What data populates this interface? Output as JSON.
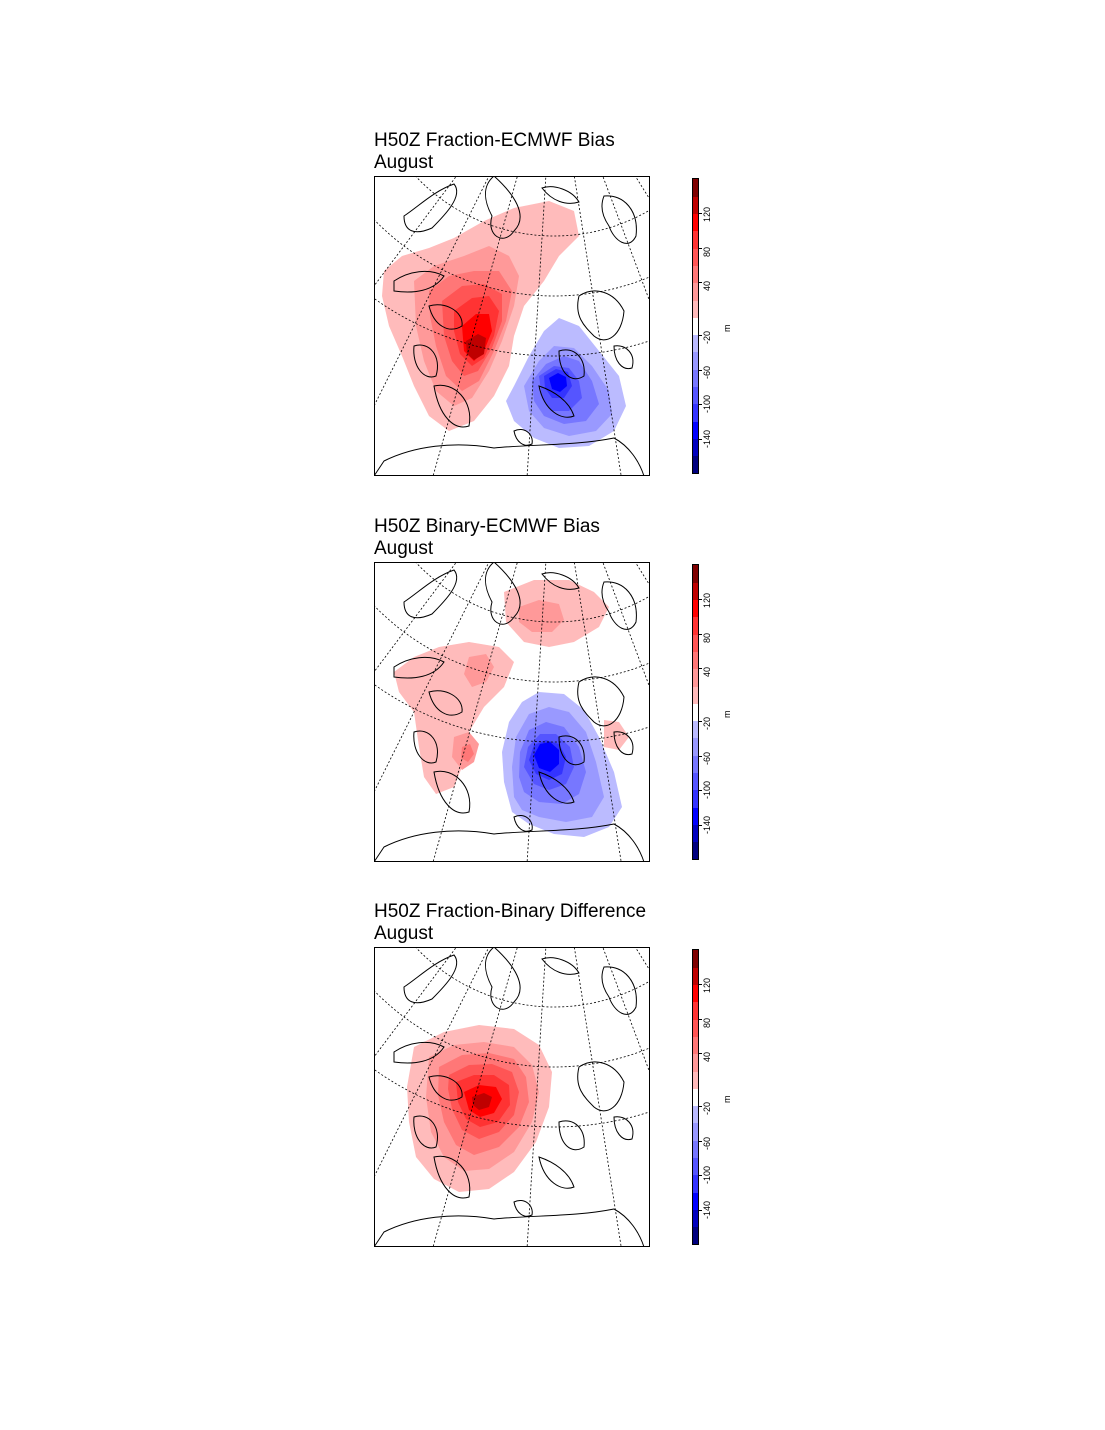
{
  "panels": [
    {
      "title_line1": "H50Z Fraction-ECMWF Bias",
      "title_line2": "August",
      "field_key": "bias_fraction"
    },
    {
      "title_line1": "H50Z Binary-ECMWF Bias",
      "title_line2": "August",
      "field_key": "bias_binary"
    },
    {
      "title_line1": "H50Z Fraction-Binary Difference",
      "title_line2": "August",
      "field_key": "diff"
    }
  ],
  "colorbar": {
    "unit": "m",
    "tick_labels": [
      "-140",
      "-100",
      "-60",
      "-20",
      "40",
      "80",
      "120"
    ],
    "levels": [
      "-160",
      "-140",
      "-120",
      "-100",
      "-80",
      "-60",
      "-40",
      "-20",
      "20",
      "40",
      "60",
      "80",
      "100",
      "120",
      "140",
      "160"
    ],
    "colors": [
      "#00007f",
      "#0000bf",
      "#0000ff",
      "#3333ff",
      "#5555ff",
      "#7777ff",
      "#9999ff",
      "#bbbbff",
      "#ffffff",
      "#ffbbbb",
      "#ff9999",
      "#ff7777",
      "#ff5555",
      "#ff3333",
      "#ff0000",
      "#bf0000",
      "#7f0000"
    ]
  },
  "colors": {
    "neg_light": "#bbbbff",
    "neg_dark": "#0000cc",
    "pos_light": "#ffbbbb",
    "pos_dark": "#990000",
    "coast": "#000000",
    "grid": "#000000"
  }
}
